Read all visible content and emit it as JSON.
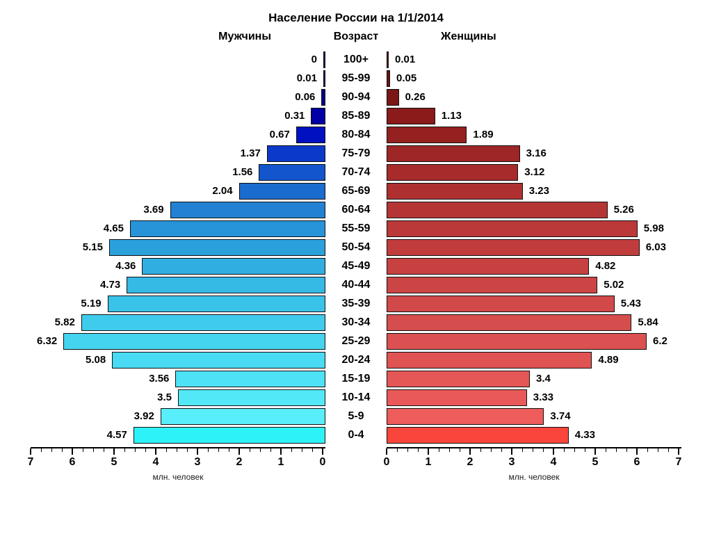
{
  "title": "Население России на 1/1/2014",
  "headers": {
    "left": "Мужчины",
    "center": "Возраст",
    "right": "Женщины"
  },
  "axis": {
    "left_ticks": [
      7,
      6,
      5,
      4,
      3,
      2,
      1,
      0
    ],
    "right_ticks": [
      0,
      1,
      2,
      3,
      4,
      5,
      6,
      7
    ],
    "left_label": "млн. человек",
    "right_label": "млн. человек",
    "max": 7,
    "minor_step": 0.25
  },
  "chart_data": {
    "type": "bar",
    "subtype": "population-pyramid",
    "title": "Население России на 1/1/2014",
    "ylabel": "Возраст",
    "xlabel": "млн. человек",
    "xlim": [
      0,
      7
    ],
    "categories": [
      "100+",
      "95-99",
      "90-94",
      "85-89",
      "80-84",
      "75-79",
      "70-74",
      "65-69",
      "60-64",
      "55-59",
      "50-54",
      "45-49",
      "40-44",
      "35-39",
      "30-34",
      "25-29",
      "20-24",
      "15-19",
      "10-14",
      "5-9",
      "0-4"
    ],
    "series": [
      {
        "name": "Мужчины",
        "side": "left",
        "values": [
          0,
          0.01,
          0.06,
          0.31,
          0.67,
          1.37,
          1.56,
          2.04,
          3.69,
          4.65,
          5.15,
          4.36,
          4.73,
          5.19,
          5.82,
          6.32,
          5.08,
          3.56,
          3.5,
          3.92,
          4.57
        ],
        "colors": [
          "#000070",
          "#00007e",
          "#00008c",
          "#0000a4",
          "#0011c2",
          "#0b3aca",
          "#1355cc",
          "#1b6ccf",
          "#2281d3",
          "#2793d8",
          "#2ba1dc",
          "#30aee1",
          "#35b9e5",
          "#3ac3e9",
          "#3fccec",
          "#44d4f0",
          "#49dbf3",
          "#4ee2f6",
          "#53e8f8",
          "#58eefb",
          "#2df3f8"
        ]
      },
      {
        "name": "Женщины",
        "side": "right",
        "values": [
          0.01,
          0.05,
          0.26,
          1.13,
          1.89,
          3.16,
          3.12,
          3.23,
          5.26,
          5.98,
          6.03,
          4.82,
          5.02,
          5.43,
          5.84,
          6.2,
          4.89,
          3.4,
          3.33,
          3.74,
          4.33
        ],
        "colors": [
          "#5e1010",
          "#6b1313",
          "#7a1616",
          "#8b1a1a",
          "#952020",
          "#9f2626",
          "#a72b2b",
          "#af3030",
          "#b53535",
          "#bb3939",
          "#c13d3d",
          "#c74141",
          "#cc4545",
          "#d14949",
          "#d64d4d",
          "#db5050",
          "#e05353",
          "#e55656",
          "#e95959",
          "#ee5c5c",
          "#f9453c"
        ]
      }
    ]
  }
}
